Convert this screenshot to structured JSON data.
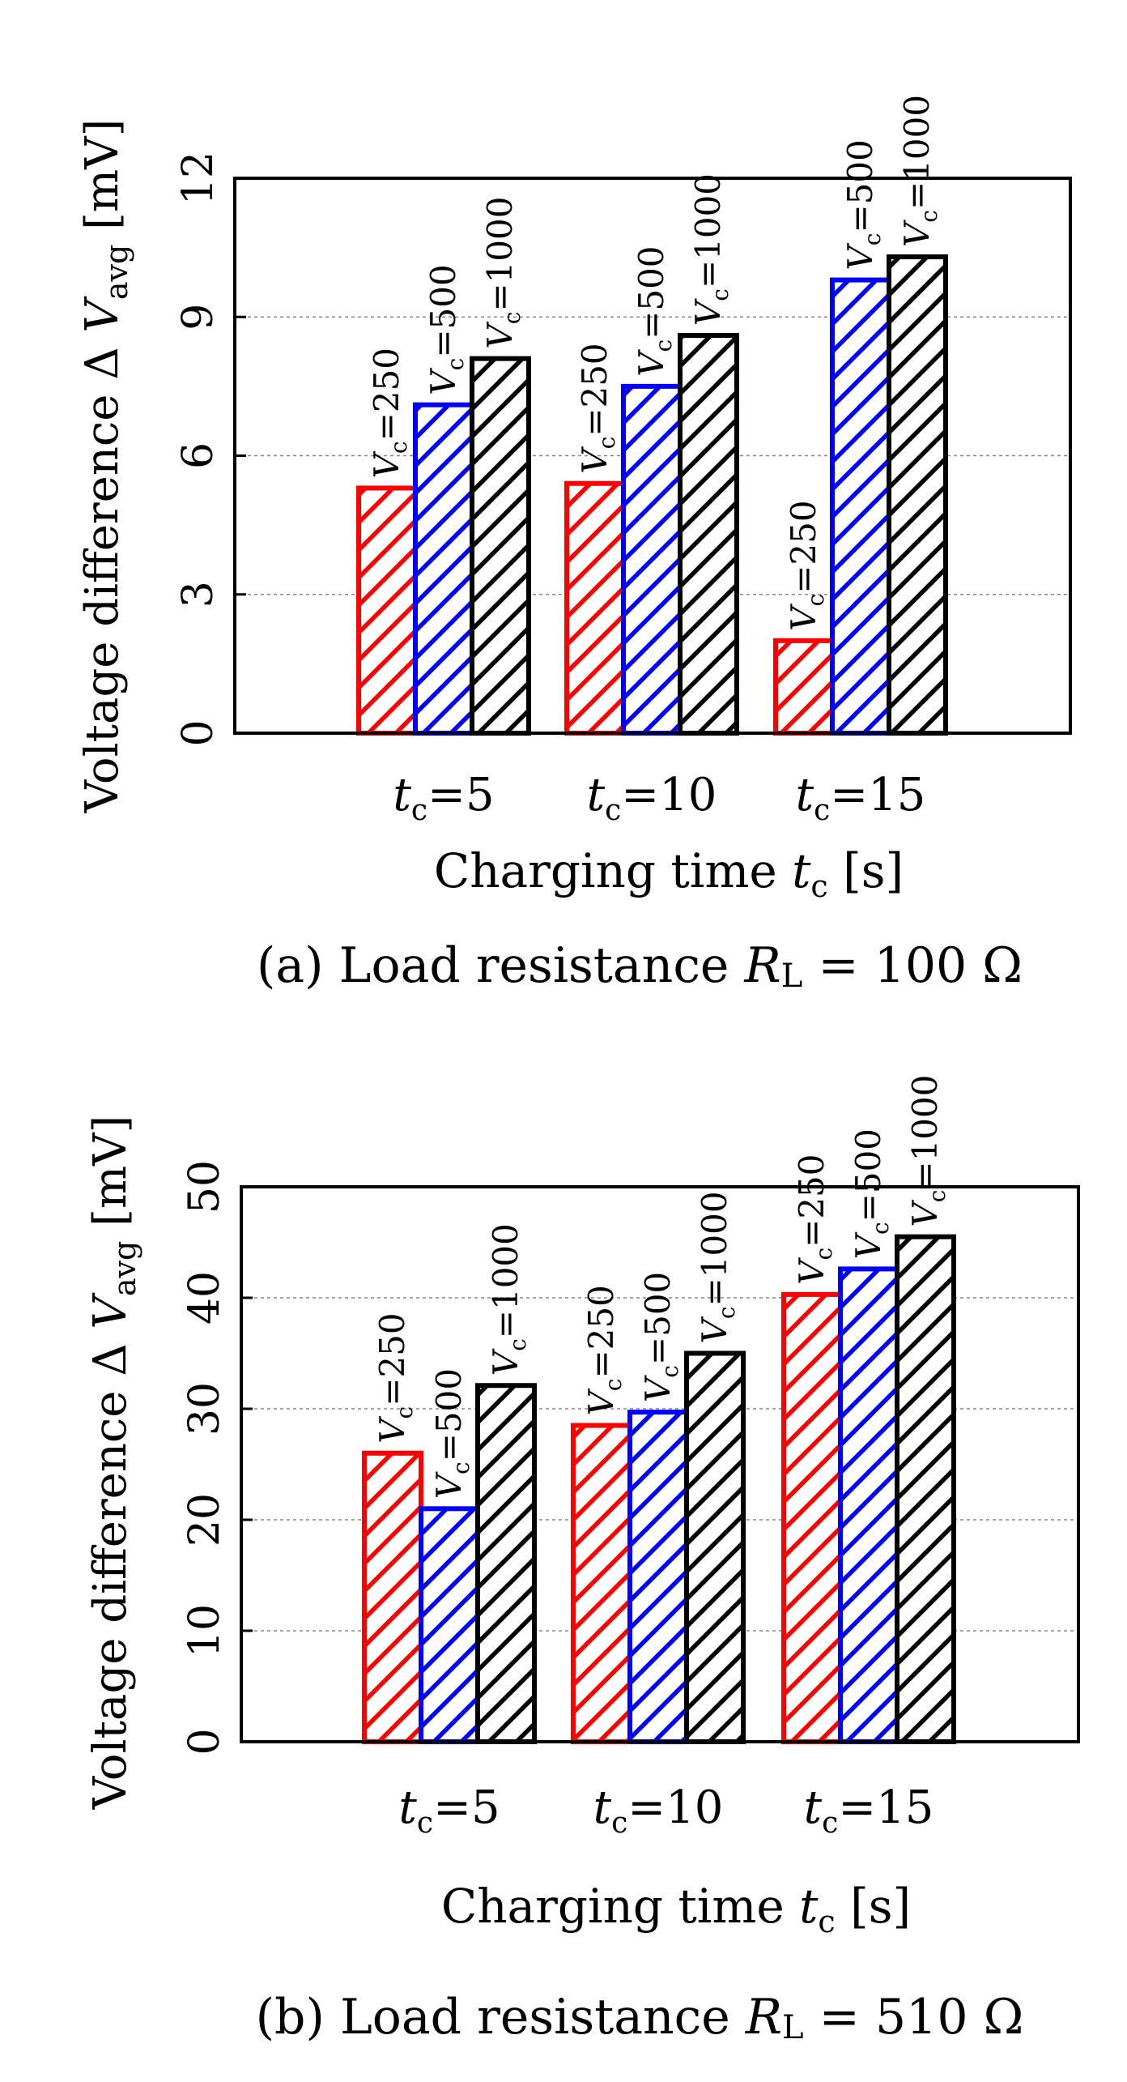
{
  "chart_data": [
    {
      "type": "bar",
      "panel": "a",
      "caption": {
        "prefix": "(a) Load resistance ",
        "symbol": "R",
        "subscript": "L",
        "suffix": " = 100  Ω"
      },
      "ylabel": {
        "prefix": "Voltage difference  Δ ",
        "symbol": "V",
        "subscript": "avg",
        "suffix": "  [mV]"
      },
      "xlabel": {
        "prefix": "Charging time  ",
        "symbol": "t",
        "subscript": "c",
        "suffix": "  [s]"
      },
      "ylim": [
        0,
        12
      ],
      "yticks": [
        "0",
        "3",
        "6",
        "9",
        "12"
      ],
      "grid": true,
      "categories": [
        {
          "symbol": "t",
          "subscript": "c",
          "value": "=5"
        },
        {
          "symbol": "t",
          "subscript": "c",
          "value": "=10"
        },
        {
          "symbol": "t",
          "subscript": "c",
          "value": "=15"
        }
      ],
      "series": [
        {
          "name": "=250",
          "color": "#ff0000",
          "values": [
            5.3,
            5.4,
            2.0
          ]
        },
        {
          "name": "=500",
          "color": "#0000ff",
          "values": [
            7.1,
            7.5,
            9.8
          ]
        },
        {
          "name": "=1000",
          "color": "#000000",
          "values": [
            8.1,
            8.6,
            10.3
          ]
        }
      ],
      "bar_label_symbol": "V",
      "bar_label_subscript": "c"
    },
    {
      "type": "bar",
      "panel": "b",
      "caption": {
        "prefix": "(b) Load resistance ",
        "symbol": "R",
        "subscript": "L",
        "suffix": " = 510  Ω"
      },
      "ylabel": {
        "prefix": "Voltage difference  Δ ",
        "symbol": "V",
        "subscript": "avg",
        "suffix": "  [mV]"
      },
      "xlabel": {
        "prefix": "Charging time  ",
        "symbol": "t",
        "subscript": "c",
        "suffix": "  [s]"
      },
      "ylim": [
        0,
        50
      ],
      "yticks": [
        "0",
        "10",
        "20",
        "30",
        "40",
        "50"
      ],
      "grid": true,
      "categories": [
        {
          "symbol": "t",
          "subscript": "c",
          "value": "=5"
        },
        {
          "symbol": "t",
          "subscript": "c",
          "value": "=10"
        },
        {
          "symbol": "t",
          "subscript": "c",
          "value": "=15"
        }
      ],
      "series": [
        {
          "name": "=250",
          "color": "#ff0000",
          "values": [
            26,
            28.5,
            40.3
          ]
        },
        {
          "name": "=500",
          "color": "#0000ff",
          "values": [
            21,
            29.7,
            42.6
          ]
        },
        {
          "name": "=1000",
          "color": "#000000",
          "values": [
            32.1,
            35,
            45.5
          ]
        }
      ],
      "bar_label_symbol": "V",
      "bar_label_subscript": "c"
    }
  ]
}
